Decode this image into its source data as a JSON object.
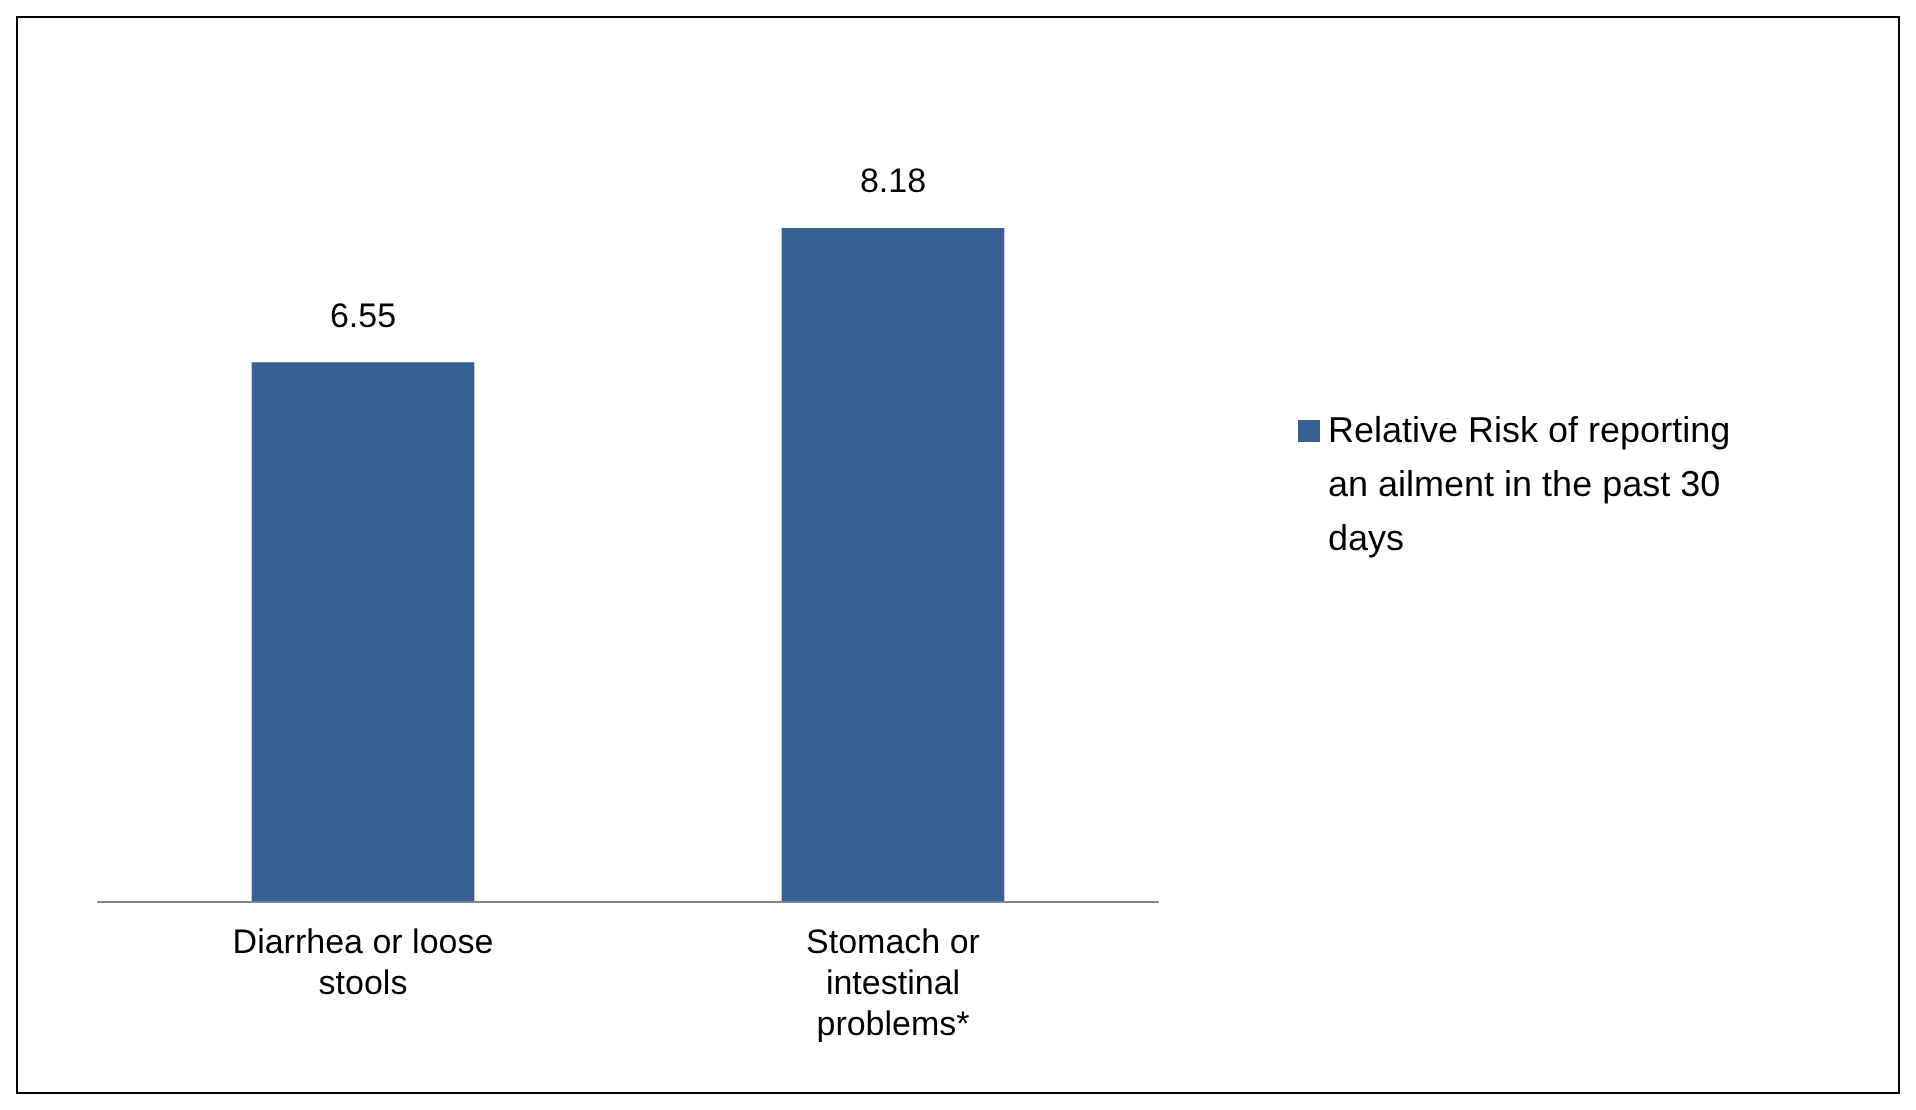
{
  "chart_data": {
    "type": "bar",
    "categories": [
      "Diarrhea or loose stools",
      "Stomach or intestinal problems*"
    ],
    "series": [
      {
        "name": "Relative Risk of reporting an ailment in the past 30 days",
        "color": "#376092",
        "values": [
          6.55,
          8.18
        ]
      }
    ],
    "data_labels": true,
    "legend": "right",
    "tick_labels": "x",
    "grid": false
  }
}
